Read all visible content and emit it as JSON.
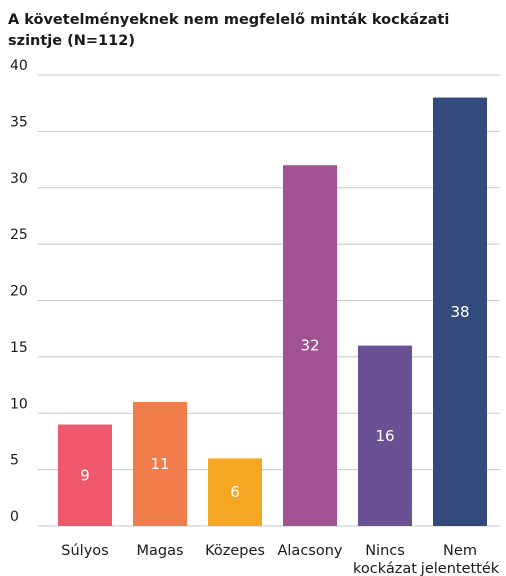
{
  "chart_data": {
    "type": "bar",
    "title": "A követelményeknek nem megfelelő minták kockázati szintje (N=112)",
    "categories": [
      [
        "Súlyos"
      ],
      [
        "Magas"
      ],
      [
        "Közepes"
      ],
      [
        "Alacsony"
      ],
      [
        "Nincs",
        "kockázat"
      ],
      [
        "Nem",
        "jelentették"
      ]
    ],
    "values": [
      9,
      11,
      6,
      32,
      16,
      38
    ],
    "colors": [
      "#f0596b",
      "#f27d4c",
      "#f5a623",
      "#a05295",
      "#6a5194",
      "#324a7c"
    ],
    "ylim": [
      0,
      40
    ],
    "yticks": [
      0,
      5,
      10,
      15,
      20,
      25,
      30,
      35,
      40
    ],
    "grid": true,
    "legend": "none"
  }
}
